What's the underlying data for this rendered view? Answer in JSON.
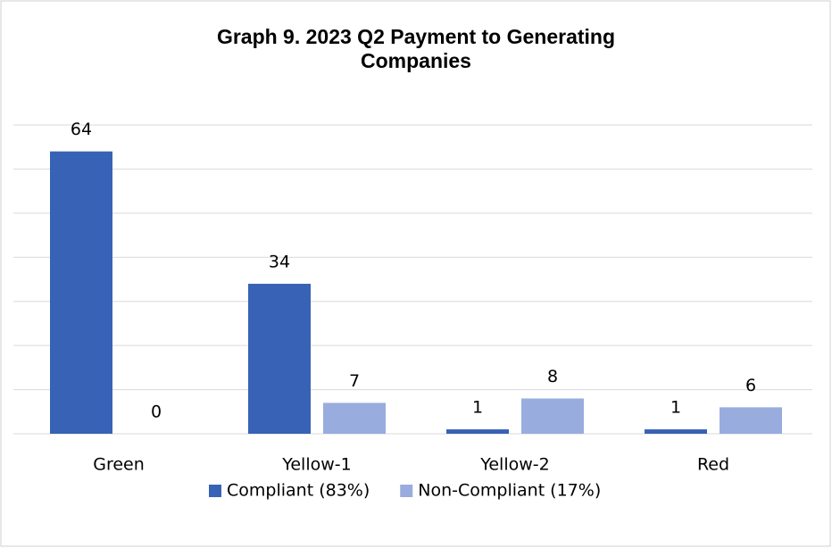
{
  "chart_data": {
    "type": "bar",
    "title": "Graph 9. 2023 Q2 Payment to Generating Companies",
    "categories": [
      "Green",
      "Yellow-1",
      "Yellow-2",
      "Red"
    ],
    "series": [
      {
        "name": "Compliant (83%)",
        "color": "#3862b5",
        "values": [
          64,
          34,
          1,
          1
        ]
      },
      {
        "name": "Non-Compliant (17%)",
        "color": "#98acdd",
        "values": [
          0,
          7,
          8,
          6
        ]
      }
    ],
    "ylim": [
      0,
      70
    ],
    "yticks": [
      0,
      10,
      20,
      30,
      40,
      50,
      60,
      70
    ],
    "grid": true,
    "legend": "bottom"
  }
}
